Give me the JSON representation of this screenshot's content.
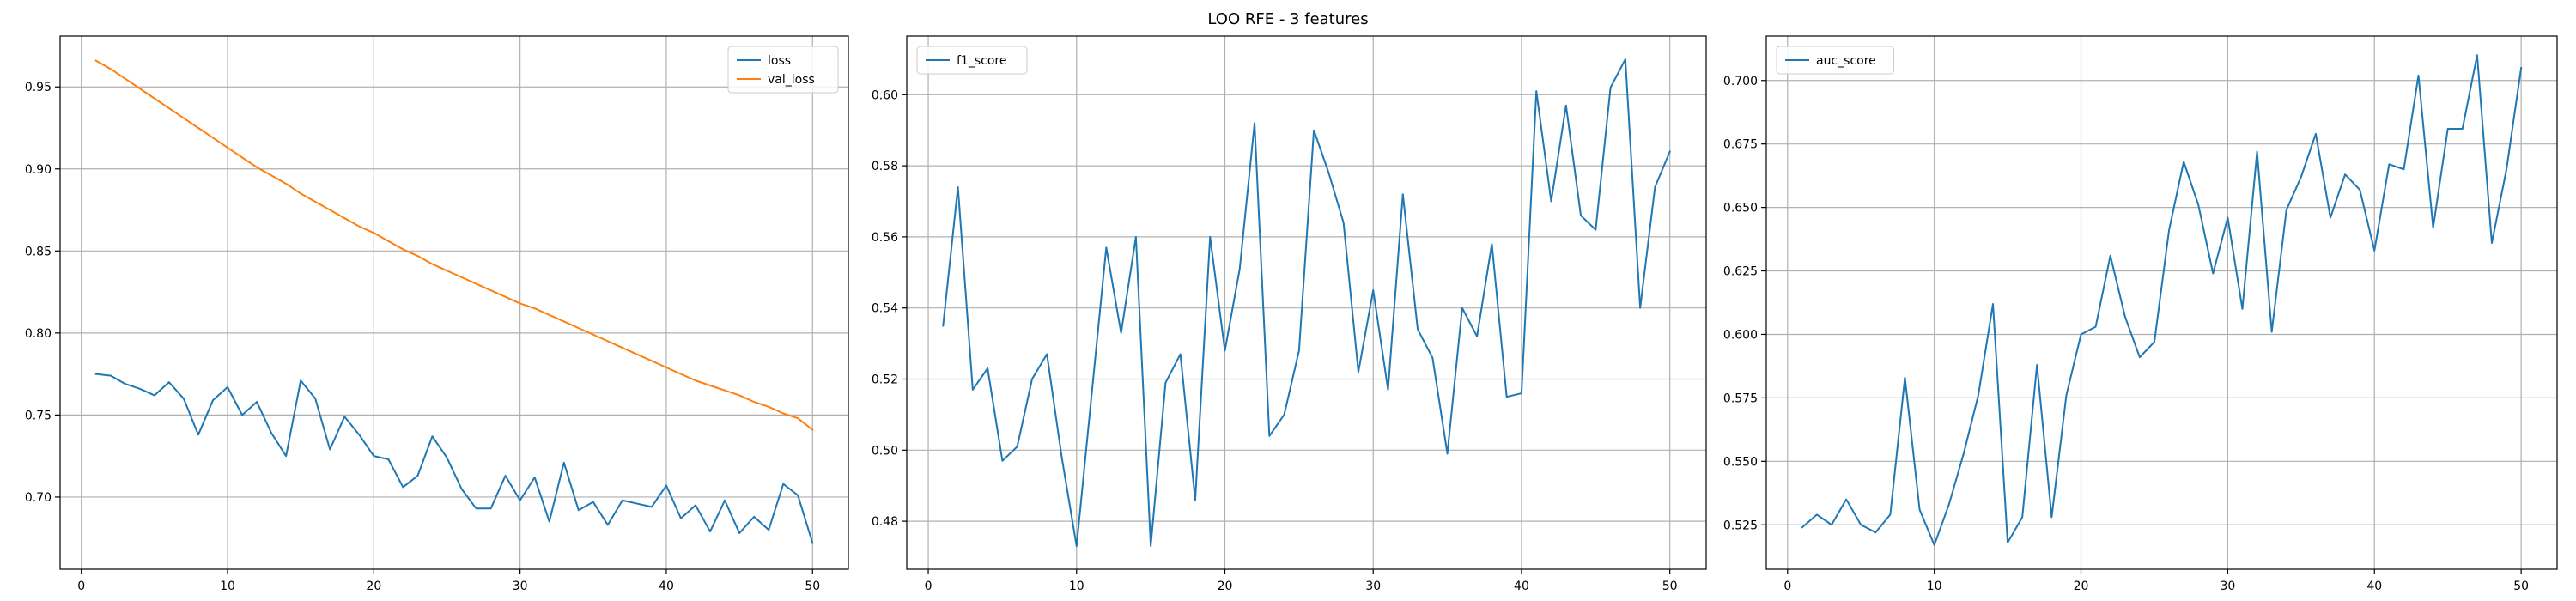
{
  "figure_title": "LOO RFE - 3 features",
  "colors": {
    "blue": "#1f77b4",
    "orange": "#ff7f0e",
    "grid": "#b0b0b0",
    "axes": "#000000"
  },
  "chart_data": [
    {
      "type": "line",
      "xlim": [
        -1.45,
        52.45
      ],
      "ylim": [
        0.656,
        0.981
      ],
      "xticks": [
        0,
        10,
        20,
        30,
        40,
        50
      ],
      "yticks": [
        0.7,
        0.75,
        0.8,
        0.85,
        0.9,
        0.95
      ],
      "ytick_labels": [
        "0.70",
        "0.75",
        "0.80",
        "0.85",
        "0.90",
        "0.95"
      ],
      "grid": true,
      "legend": "upper right",
      "x": [
        1,
        2,
        3,
        4,
        5,
        6,
        7,
        8,
        9,
        10,
        11,
        12,
        13,
        14,
        15,
        16,
        17,
        18,
        19,
        20,
        21,
        22,
        23,
        24,
        25,
        26,
        27,
        28,
        29,
        30,
        31,
        32,
        33,
        34,
        35,
        36,
        37,
        38,
        39,
        40,
        41,
        42,
        43,
        44,
        45,
        46,
        47,
        48,
        49,
        50
      ],
      "series": [
        {
          "name": "loss",
          "color": "#1f77b4",
          "values": [
            0.775,
            0.774,
            0.769,
            0.766,
            0.762,
            0.77,
            0.76,
            0.738,
            0.759,
            0.767,
            0.75,
            0.758,
            0.739,
            0.725,
            0.771,
            0.76,
            0.729,
            0.749,
            0.738,
            0.725,
            0.723,
            0.706,
            0.713,
            0.737,
            0.724,
            0.705,
            0.693,
            0.693,
            0.713,
            0.698,
            0.712,
            0.685,
            0.721,
            0.692,
            0.697,
            0.683,
            0.698,
            0.696,
            0.694,
            0.707,
            0.687,
            0.695,
            0.679,
            0.698,
            0.678,
            0.688,
            0.68,
            0.708,
            0.701,
            0.672
          ]
        },
        {
          "name": "val_loss",
          "color": "#ff7f0e",
          "values": [
            0.966,
            0.961,
            0.955,
            0.949,
            0.943,
            0.937,
            0.931,
            0.925,
            0.919,
            0.913,
            0.907,
            0.901,
            0.896,
            0.891,
            0.885,
            0.88,
            0.875,
            0.87,
            0.865,
            0.861,
            0.856,
            0.851,
            0.847,
            0.842,
            0.838,
            0.834,
            0.83,
            0.826,
            0.822,
            0.818,
            0.815,
            0.811,
            0.807,
            0.803,
            0.799,
            0.795,
            0.791,
            0.787,
            0.783,
            0.779,
            0.775,
            0.771,
            0.768,
            0.765,
            0.762,
            0.758,
            0.755,
            0.751,
            0.748,
            0.741
          ]
        }
      ]
    },
    {
      "type": "line",
      "xlim": [
        -1.45,
        52.45
      ],
      "ylim": [
        0.4665,
        0.6165
      ],
      "xticks": [
        0,
        10,
        20,
        30,
        40,
        50
      ],
      "yticks": [
        0.48,
        0.5,
        0.52,
        0.54,
        0.56,
        0.58,
        0.6
      ],
      "ytick_labels": [
        "0.48",
        "0.50",
        "0.52",
        "0.54",
        "0.56",
        "0.58",
        "0.60"
      ],
      "grid": true,
      "legend": "upper left",
      "x": [
        1,
        2,
        3,
        4,
        5,
        6,
        7,
        8,
        9,
        10,
        11,
        12,
        13,
        14,
        15,
        16,
        17,
        18,
        19,
        20,
        21,
        22,
        23,
        24,
        25,
        26,
        27,
        28,
        29,
        30,
        31,
        32,
        33,
        34,
        35,
        36,
        37,
        38,
        39,
        40,
        41,
        42,
        43,
        44,
        45,
        46,
        47,
        48,
        49,
        50
      ],
      "series": [
        {
          "name": "f1_score",
          "color": "#1f77b4",
          "values": [
            0.535,
            0.574,
            0.517,
            0.523,
            0.497,
            0.501,
            0.52,
            0.527,
            0.498,
            0.473,
            0.515,
            0.557,
            0.533,
            0.56,
            0.473,
            0.519,
            0.527,
            0.486,
            0.56,
            0.528,
            0.551,
            0.592,
            0.504,
            0.51,
            0.528,
            0.59,
            0.578,
            0.564,
            0.522,
            0.545,
            0.517,
            0.572,
            0.534,
            0.526,
            0.499,
            0.54,
            0.532,
            0.558,
            0.515,
            0.516,
            0.601,
            0.57,
            0.597,
            0.566,
            0.562,
            0.602,
            0.61,
            0.54,
            0.574,
            0.584
          ]
        }
      ]
    },
    {
      "type": "line",
      "xlim": [
        -1.45,
        52.45
      ],
      "ylim": [
        0.5075,
        0.7175
      ],
      "xticks": [
        0,
        10,
        20,
        30,
        40,
        50
      ],
      "yticks": [
        0.525,
        0.55,
        0.575,
        0.6,
        0.625,
        0.65,
        0.675,
        0.7
      ],
      "ytick_labels": [
        "0.525",
        "0.550",
        "0.575",
        "0.600",
        "0.625",
        "0.650",
        "0.675",
        "0.700"
      ],
      "grid": true,
      "legend": "upper left",
      "x": [
        1,
        2,
        3,
        4,
        5,
        6,
        7,
        8,
        9,
        10,
        11,
        12,
        13,
        14,
        15,
        16,
        17,
        18,
        19,
        20,
        21,
        22,
        23,
        24,
        25,
        26,
        27,
        28,
        29,
        30,
        31,
        32,
        33,
        34,
        35,
        36,
        37,
        38,
        39,
        40,
        41,
        42,
        43,
        44,
        45,
        46,
        47,
        48,
        49,
        50
      ],
      "series": [
        {
          "name": "auc_score",
          "color": "#1f77b4",
          "values": [
            0.524,
            0.529,
            0.525,
            0.535,
            0.525,
            0.522,
            0.529,
            0.583,
            0.531,
            0.517,
            0.533,
            0.553,
            0.576,
            0.612,
            0.518,
            0.528,
            0.588,
            0.528,
            0.576,
            0.6,
            0.603,
            0.631,
            0.607,
            0.591,
            0.597,
            0.641,
            0.668,
            0.651,
            0.624,
            0.646,
            0.61,
            0.672,
            0.601,
            0.649,
            0.662,
            0.679,
            0.646,
            0.663,
            0.657,
            0.633,
            0.667,
            0.665,
            0.702,
            0.642,
            0.681,
            0.681,
            0.71,
            0.636,
            0.665,
            0.705
          ]
        }
      ]
    }
  ]
}
